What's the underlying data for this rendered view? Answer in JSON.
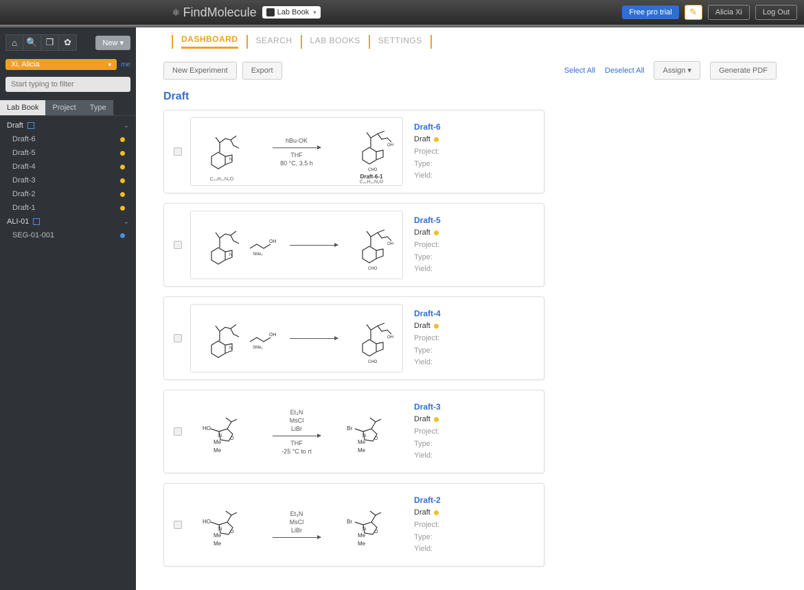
{
  "colors": {
    "accent_orange": "#f0a020",
    "accent_blue": "#2f6fd1",
    "status_yellow": "#f0c020",
    "status_blue": "#4a90d9",
    "sidebar_bg": "#2f3338"
  },
  "topbar": {
    "brand": "FindMolecule",
    "brand_find": "Find",
    "brand_molecule": "Molecule",
    "labbook_selector": "Lab Book",
    "free_trial": "Free pro trial",
    "user_button": "Alicia Xi",
    "logout": "Log Out"
  },
  "sidebar": {
    "new_button": "New ▾",
    "user_select": "Xi, Alicia",
    "me_link": "me",
    "filter_placeholder": "Start typing to filter",
    "tabs": [
      {
        "label": "Lab Book",
        "active": true
      },
      {
        "label": "Project",
        "active": false
      },
      {
        "label": "Type",
        "active": false
      }
    ],
    "groups": [
      {
        "label": "Draft",
        "expanded": true,
        "items": [
          {
            "label": "Draft-6",
            "dot_color": "#f0c020"
          },
          {
            "label": "Draft-5",
            "dot_color": "#f0c020"
          },
          {
            "label": "Draft-4",
            "dot_color": "#f0c020"
          },
          {
            "label": "Draft-3",
            "dot_color": "#f0c020"
          },
          {
            "label": "Draft-2",
            "dot_color": "#f0c020"
          },
          {
            "label": "Draft-1",
            "dot_color": "#f0c020"
          }
        ]
      },
      {
        "label": "ALI-01",
        "expanded": true,
        "items": [
          {
            "label": "SEG-01-001",
            "dot_color": "#4a90d9"
          }
        ]
      }
    ]
  },
  "main": {
    "tabs": [
      {
        "label": "DASHBOARD",
        "active": true
      },
      {
        "label": "SEARCH",
        "active": false
      },
      {
        "label": "LAB BOOKS",
        "active": false
      },
      {
        "label": "SETTINGS",
        "active": false
      }
    ],
    "actions": {
      "new_experiment": "New Experiment",
      "export": "Export",
      "select_all": "Select All",
      "deselect_all": "Deselect All",
      "assign": "Assign ▾",
      "generate_pdf": "Generate PDF"
    },
    "section_title": "Draft",
    "meta_labels": {
      "project": "Project:",
      "type": "Type:",
      "yield": "Yield:"
    },
    "status_label": "Draft",
    "cards": [
      {
        "title": "Draft-6",
        "status_color": "#f0c020",
        "bordered": true,
        "conditions_top": "hBu-OK",
        "conditions_mid": "THF",
        "conditions_bot": "80 °C, 3.5 h",
        "product_label": "Draft-6-1"
      },
      {
        "title": "Draft-5",
        "status_color": "#f0c020",
        "bordered": true,
        "conditions_top": "",
        "conditions_mid": "",
        "conditions_bot": "",
        "product_label": ""
      },
      {
        "title": "Draft-4",
        "status_color": "#f0c020",
        "bordered": true,
        "conditions_top": "",
        "conditions_mid": "",
        "conditions_bot": "",
        "product_label": ""
      },
      {
        "title": "Draft-3",
        "status_color": "#f0c020",
        "bordered": false,
        "conditions_top": "Et₃N",
        "conditions_l2": "MsCl",
        "conditions_l3": "LiBr",
        "conditions_mid": "THF",
        "conditions_bot": "-25 °C to rt",
        "product_label": ""
      },
      {
        "title": "Draft-2",
        "status_color": "#f0c020",
        "bordered": false,
        "conditions_top": "Et₃N",
        "conditions_l2": "MsCl",
        "conditions_l3": "LiBr",
        "conditions_mid": "",
        "conditions_bot": "",
        "product_label": ""
      }
    ]
  }
}
